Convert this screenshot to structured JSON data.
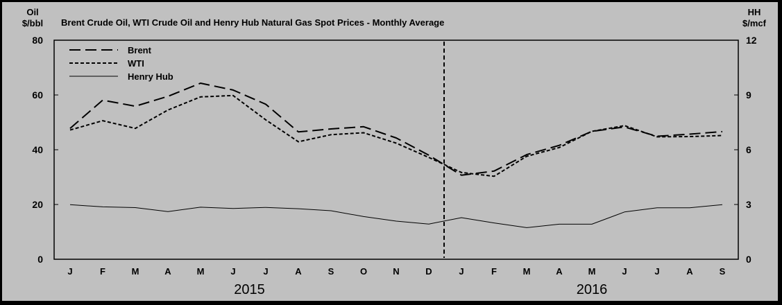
{
  "chart_data": {
    "type": "line",
    "title": "Brent Crude Oil, WTI Crude Oil and Henry Hub Natural Gas Spot Prices - Monthly Average",
    "y_left_label_line1": "Oil",
    "y_left_label_line2": "$/bbl",
    "y_right_label_line1": "HH",
    "y_right_label_line2": "$/mcf",
    "y_left_range": [
      0,
      80
    ],
    "y_left_ticks": [
      "0",
      "20",
      "40",
      "60",
      "80"
    ],
    "y_right_range": [
      0,
      12
    ],
    "y_right_ticks": [
      "0",
      "3",
      "6",
      "9",
      "12"
    ],
    "categories": [
      "J",
      "F",
      "M",
      "A",
      "M",
      "J",
      "J",
      "A",
      "S",
      "O",
      "N",
      "D",
      "J",
      "F",
      "M",
      "A",
      "M",
      "J",
      "J",
      "A",
      "S"
    ],
    "year_labels": [
      "2015",
      "2016"
    ],
    "series": [
      {
        "name": "Brent",
        "axis": "left",
        "style": "long-dash",
        "values": [
          47.8,
          58.1,
          55.9,
          59.5,
          64.3,
          61.8,
          56.6,
          46.5,
          47.6,
          48.4,
          44.3,
          38.0,
          30.7,
          32.2,
          38.2,
          41.6,
          46.7,
          48.3,
          44.9,
          45.7,
          46.6
        ]
      },
      {
        "name": "WTI",
        "axis": "left",
        "style": "short-dash",
        "values": [
          47.2,
          50.6,
          47.8,
          54.5,
          59.3,
          59.8,
          50.9,
          42.9,
          45.5,
          46.2,
          42.4,
          37.2,
          31.7,
          30.3,
          37.6,
          40.8,
          46.7,
          48.8,
          44.7,
          44.8,
          45.2
        ]
      },
      {
        "name": "Henry Hub",
        "axis": "right",
        "style": "solid",
        "values": [
          2.99,
          2.87,
          2.83,
          2.61,
          2.85,
          2.78,
          2.84,
          2.77,
          2.66,
          2.34,
          2.09,
          1.93,
          2.28,
          1.99,
          1.73,
          1.92,
          1.92,
          2.59,
          2.82,
          2.82,
          2.99
        ]
      }
    ],
    "annotation": "vertical dashed line at current month (mid-January 2016)",
    "grid": false,
    "legend_position": "top-left"
  },
  "colors": {
    "background": "#000000",
    "panel": "#c0c0c0",
    "plot_area": "#c0c0c0",
    "lines": "#000000"
  }
}
